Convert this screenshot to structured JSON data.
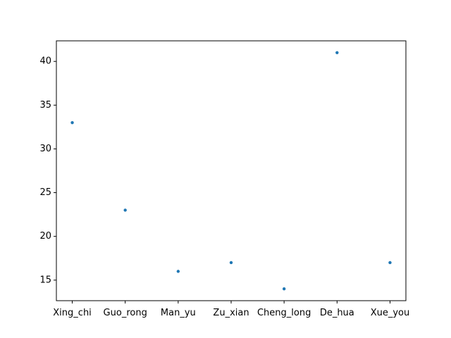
{
  "chart_data": {
    "type": "scatter",
    "title": "",
    "xlabel": "",
    "ylabel": "",
    "categories": [
      "Xing_chi",
      "Guo_rong",
      "Man_yu",
      "Zu_xian",
      "Cheng_long",
      "De_hua",
      "Xue_you"
    ],
    "values": [
      33,
      23,
      16,
      17,
      14,
      41,
      17
    ],
    "ylim": [
      12.65,
      42.35
    ],
    "yticks": [
      15,
      20,
      25,
      30,
      35,
      40
    ],
    "grid": false,
    "marker_color": "#1f77b4"
  }
}
